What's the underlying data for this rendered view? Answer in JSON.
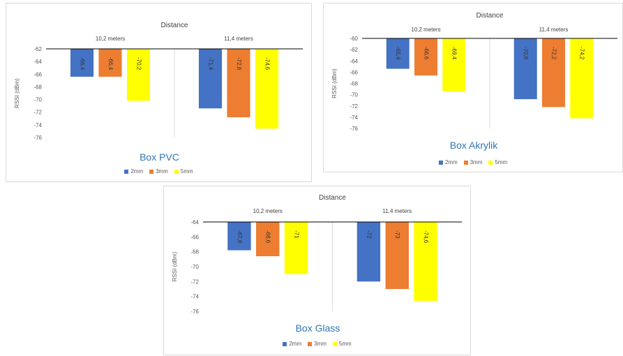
{
  "chart_data": [
    {
      "type": "bar",
      "title": "Distance",
      "subtitle": "Box PVC",
      "ylabel": "RSSI (dBm)",
      "categories": [
        "10,2 meters",
        "11,4 meters"
      ],
      "ylim": [
        -76,
        -62
      ],
      "yticks": [
        -62,
        -64,
        -66,
        -68,
        -70,
        -72,
        -74,
        -76
      ],
      "grid": false,
      "legend": "bottom",
      "series": [
        {
          "name": "2mm",
          "values": [
            -66.4,
            -71.4
          ],
          "labels": [
            "-66,4",
            "-71,4"
          ],
          "color": "#4472C4"
        },
        {
          "name": "3mm",
          "values": [
            -66.4,
            -72.8
          ],
          "labels": [
            "-66,4",
            "-72,8"
          ],
          "color": "#ED7D31"
        },
        {
          "name": "5mm",
          "values": [
            -70.2,
            -74.6
          ],
          "labels": [
            "-70,2",
            "-74,6"
          ],
          "color": "#FFFF00"
        }
      ]
    },
    {
      "type": "bar",
      "title": "Distance",
      "subtitle": "Box Akrylik",
      "ylabel": "RSSI (dBm)",
      "categories": [
        "10,2 meters",
        "11,4 meters"
      ],
      "ylim": [
        -76,
        -60
      ],
      "yticks": [
        -60,
        -62,
        -64,
        -66,
        -68,
        -70,
        -72,
        -74,
        -76
      ],
      "grid": false,
      "legend": "bottom",
      "series": [
        {
          "name": "2mm",
          "values": [
            -65.4,
            -70.8
          ],
          "labels": [
            "-65,4",
            "-70,8"
          ],
          "color": "#4472C4"
        },
        {
          "name": "3mm",
          "values": [
            -66.6,
            -72.2
          ],
          "labels": [
            "-66,6",
            "-72,2"
          ],
          "color": "#ED7D31"
        },
        {
          "name": "5mm",
          "values": [
            -69.4,
            -74.2
          ],
          "labels": [
            "-69,4",
            "-74,2"
          ],
          "color": "#FFFF00"
        }
      ]
    },
    {
      "type": "bar",
      "title": "Distance",
      "subtitle": "Box Glass",
      "ylabel": "RSSI (dBm)",
      "categories": [
        "10,2 meters",
        "11,4 meters"
      ],
      "ylim": [
        -76,
        -64
      ],
      "yticks": [
        -64,
        -66,
        -68,
        -70,
        -72,
        -74,
        -76
      ],
      "grid": false,
      "legend": "bottom",
      "series": [
        {
          "name": "2mm",
          "values": [
            -67.8,
            -72
          ],
          "labels": [
            "-67,8",
            "-72"
          ],
          "color": "#4472C4"
        },
        {
          "name": "3mm",
          "values": [
            -68.6,
            -73
          ],
          "labels": [
            "-68,6",
            "-73"
          ],
          "color": "#ED7D31"
        },
        {
          "name": "5mm",
          "values": [
            -71,
            -74.6
          ],
          "labels": [
            "-71",
            "-74,6"
          ],
          "color": "#FFFF00"
        }
      ]
    }
  ],
  "colors": {
    "title_text": "#404040",
    "tick_text": "#595959",
    "subtitle_text": "#2E75B6",
    "axis_line": "#000000",
    "divider": "#d9d9d9"
  }
}
